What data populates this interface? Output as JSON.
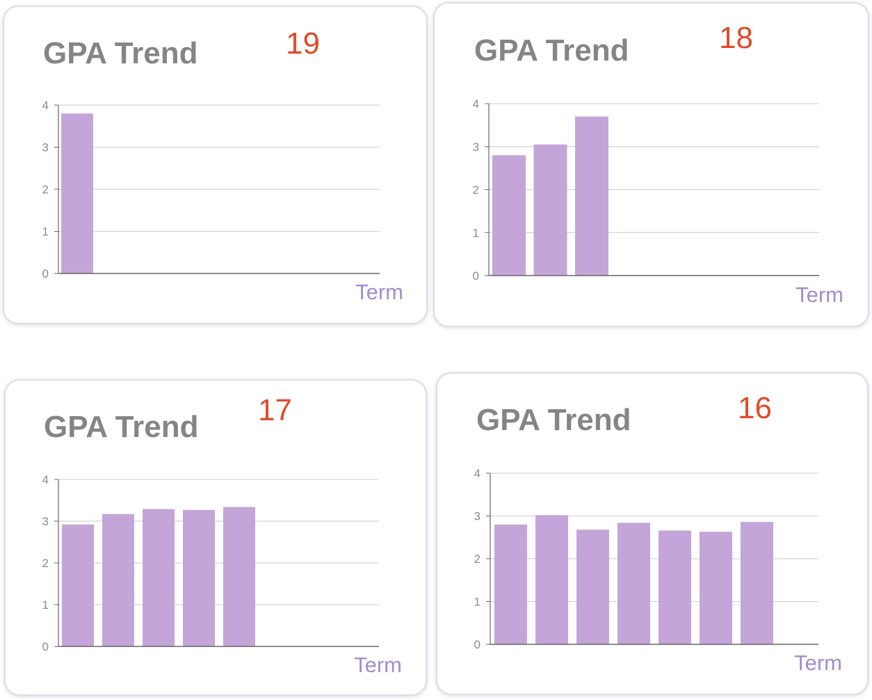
{
  "colors": {
    "bar": "#c4a5d9",
    "grid": "#d3d3d3",
    "axis": "#666666",
    "tick_text": "#8a8a8a",
    "xlabel": "#a48ccf",
    "title": "#858585",
    "number": "#e24a27"
  },
  "cards": [
    {
      "title": "GPA Trend",
      "number": "19"
    },
    {
      "title": "GPA Trend",
      "number": "18"
    },
    {
      "title": "GPA Trend",
      "number": "17"
    },
    {
      "title": "GPA Trend",
      "number": "16"
    }
  ],
  "chart_data": [
    {
      "type": "bar",
      "title": "GPA Trend",
      "xlabel": "Term",
      "ylabel": "",
      "ylim": [
        0,
        4
      ],
      "yticks": [
        "0",
        "1",
        "2",
        "3",
        "4"
      ],
      "grid": true,
      "values": [
        3.8
      ]
    },
    {
      "type": "bar",
      "title": "GPA Trend",
      "xlabel": "Term",
      "ylabel": "",
      "ylim": [
        0,
        4
      ],
      "yticks": [
        "0",
        "1",
        "2",
        "3",
        "4"
      ],
      "grid": true,
      "values": [
        2.8,
        3.05,
        3.7
      ]
    },
    {
      "type": "bar",
      "title": "GPA Trend",
      "xlabel": "Term",
      "ylabel": "",
      "ylim": [
        0,
        4
      ],
      "yticks": [
        "0",
        "1",
        "2",
        "3",
        "4"
      ],
      "grid": true,
      "values": [
        2.92,
        3.17,
        3.29,
        3.27,
        3.34
      ]
    },
    {
      "type": "bar",
      "title": "GPA Trend",
      "xlabel": "Term",
      "ylabel": "",
      "ylim": [
        0,
        4
      ],
      "yticks": [
        "0",
        "1",
        "2",
        "3",
        "4"
      ],
      "grid": true,
      "values": [
        2.8,
        3.02,
        2.68,
        2.84,
        2.66,
        2.63,
        2.86
      ]
    }
  ]
}
